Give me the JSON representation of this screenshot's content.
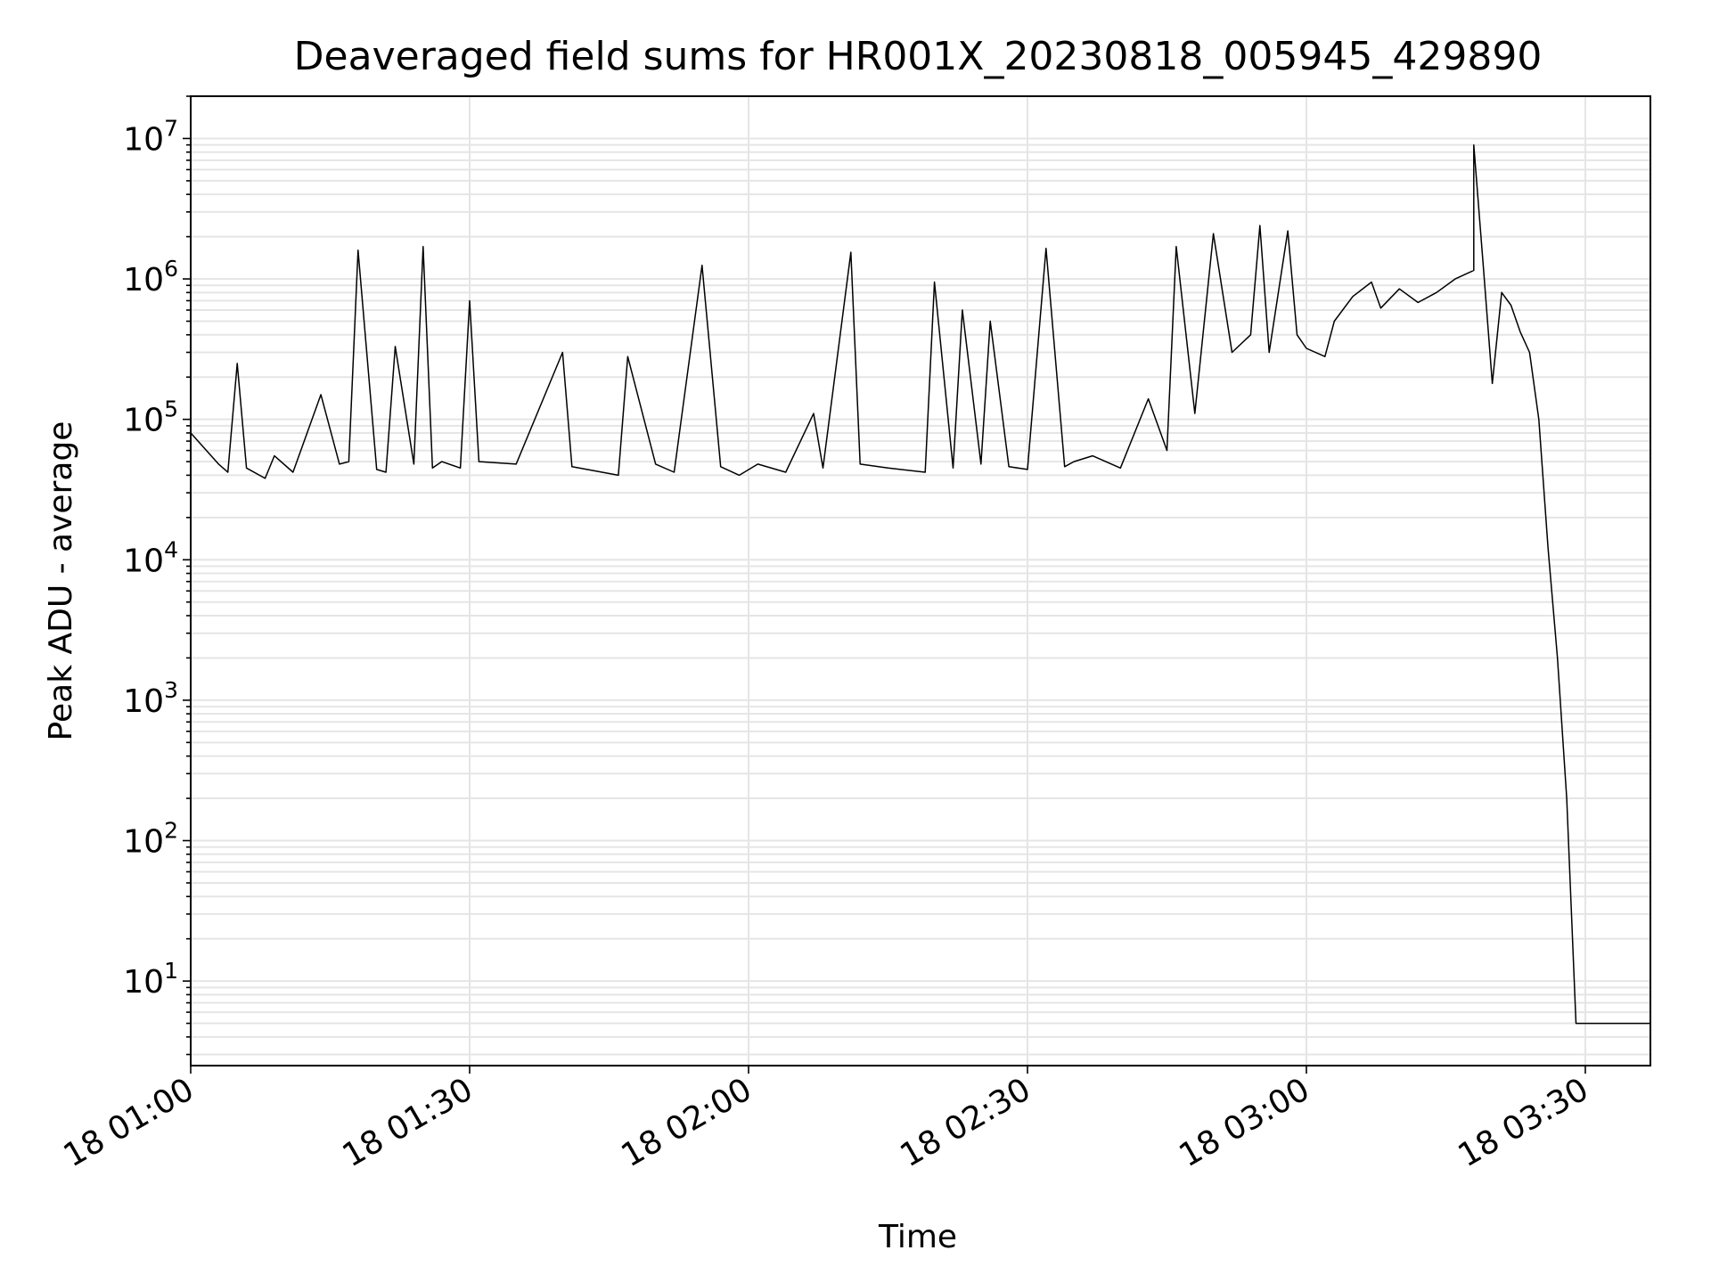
{
  "chart_data": {
    "type": "line",
    "title": "Deaveraged field sums for HR001X_20230818_005945_429890",
    "xlabel": "Time",
    "ylabel": "Peak ADU - average",
    "x_tick_labels": [
      "18 01:00",
      "18 01:30",
      "18 02:00",
      "18 02:30",
      "18 03:00",
      "18 03:30"
    ],
    "y_tick_labels": [
      {
        "base": "10",
        "exp": "1"
      },
      {
        "base": "10",
        "exp": "2"
      },
      {
        "base": "10",
        "exp": "3"
      },
      {
        "base": "10",
        "exp": "4"
      },
      {
        "base": "10",
        "exp": "5"
      },
      {
        "base": "10",
        "exp": "6"
      },
      {
        "base": "10",
        "exp": "7"
      }
    ],
    "yscale": "log",
    "ylim": [
      2.5,
      20000000
    ],
    "xlim": [
      "2023-08-18T01:00",
      "2023-08-18T03:37"
    ],
    "grid": true,
    "line_color": "#000000",
    "grid_color": "#e5e5e5",
    "series": [
      {
        "name": "",
        "x": [
          "2023-08-18T01:00",
          "2023-08-18T01:03",
          "2023-08-18T01:04",
          "2023-08-18T01:05",
          "2023-08-18T01:06",
          "2023-08-18T01:08",
          "2023-08-18T01:09",
          "2023-08-18T01:11",
          "2023-08-18T01:14",
          "2023-08-18T01:16",
          "2023-08-18T01:17",
          "2023-08-18T01:18",
          "2023-08-18T01:20",
          "2023-08-18T01:21",
          "2023-08-18T01:22",
          "2023-08-18T01:24",
          "2023-08-18T01:25",
          "2023-08-18T01:26",
          "2023-08-18T01:27",
          "2023-08-18T01:29",
          "2023-08-18T01:30",
          "2023-08-18T01:31",
          "2023-08-18T01:35",
          "2023-08-18T01:40",
          "2023-08-18T01:41",
          "2023-08-18T01:46",
          "2023-08-18T01:47",
          "2023-08-18T01:50",
          "2023-08-18T01:52",
          "2023-08-18T01:55",
          "2023-08-18T01:57",
          "2023-08-18T01:59",
          "2023-08-18T02:01",
          "2023-08-18T02:04",
          "2023-08-18T02:07",
          "2023-08-18T02:08",
          "2023-08-18T02:11",
          "2023-08-18T02:12",
          "2023-08-18T02:15",
          "2023-08-18T02:19",
          "2023-08-18T02:20",
          "2023-08-18T02:22",
          "2023-08-18T02:23",
          "2023-08-18T02:25",
          "2023-08-18T02:26",
          "2023-08-18T02:28",
          "2023-08-18T02:30",
          "2023-08-18T02:32",
          "2023-08-18T02:34",
          "2023-08-18T02:35",
          "2023-08-18T02:37",
          "2023-08-18T02:40",
          "2023-08-18T02:43",
          "2023-08-18T02:45",
          "2023-08-18T02:46",
          "2023-08-18T02:48",
          "2023-08-18T02:50",
          "2023-08-18T02:52",
          "2023-08-18T02:54",
          "2023-08-18T02:55",
          "2023-08-18T02:56",
          "2023-08-18T02:58",
          "2023-08-18T02:59",
          "2023-08-18T03:00",
          "2023-08-18T03:02",
          "2023-08-18T03:03",
          "2023-08-18T03:05",
          "2023-08-18T03:07",
          "2023-08-18T03:08",
          "2023-08-18T03:10",
          "2023-08-18T03:12",
          "2023-08-18T03:14",
          "2023-08-18T03:16",
          "2023-08-18T03:18",
          "2023-08-18T03:18",
          "2023-08-18T03:19",
          "2023-08-18T03:20",
          "2023-08-18T03:21",
          "2023-08-18T03:22",
          "2023-08-18T03:23",
          "2023-08-18T03:24",
          "2023-08-18T03:25",
          "2023-08-18T03:26",
          "2023-08-18T03:27",
          "2023-08-18T03:28",
          "2023-08-18T03:29",
          "2023-08-18T03:31",
          "2023-08-18T03:33",
          "2023-08-18T03:35",
          "2023-08-18T03:37"
        ],
        "y": [
          80000,
          48000,
          42000,
          250000,
          45000,
          38000,
          55000,
          42000,
          150000,
          48000,
          50000,
          1600000,
          44000,
          42000,
          330000,
          48000,
          1700000,
          45000,
          50000,
          45000,
          700000,
          50000,
          48000,
          300000,
          46000,
          40000,
          280000,
          48000,
          42000,
          1250000,
          46000,
          40000,
          48000,
          42000,
          110000,
          45000,
          1550000,
          48000,
          45000,
          42000,
          950000,
          45000,
          600000,
          48000,
          500000,
          46000,
          44000,
          1650000,
          46000,
          50000,
          55000,
          45000,
          140000,
          60000,
          1700000,
          110000,
          2100000,
          300000,
          400000,
          2400000,
          300000,
          2200000,
          400000,
          320000,
          280000,
          500000,
          750000,
          950000,
          620000,
          850000,
          680000,
          800000,
          1000000,
          1150000,
          9000000,
          1300000,
          180000,
          800000,
          650000,
          420000,
          300000,
          100000,
          12000,
          2000,
          200,
          5,
          5,
          5,
          5,
          5
        ]
      }
    ]
  }
}
